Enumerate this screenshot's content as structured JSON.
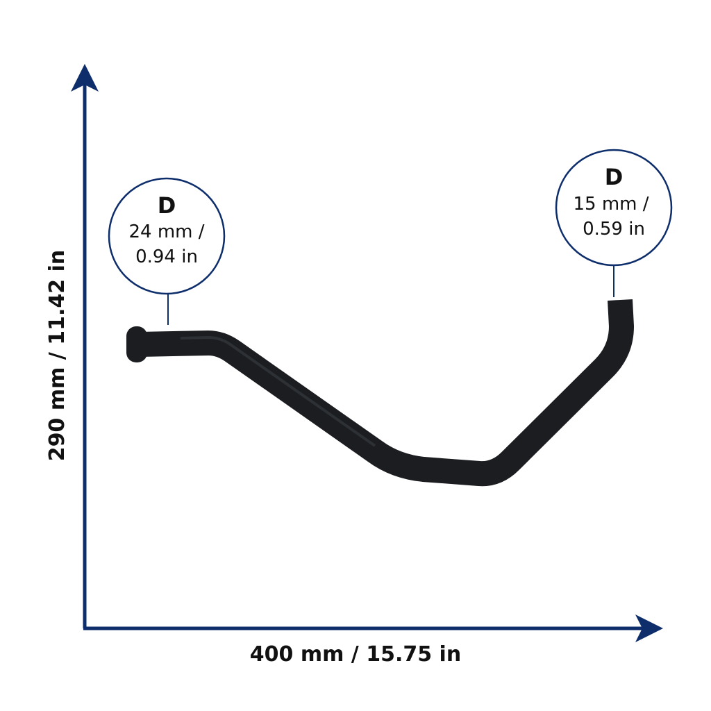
{
  "dimensions": {
    "width": "400 mm / 15.75 in",
    "height": "290 mm / 11.42 in"
  },
  "callouts": [
    {
      "letter": "D",
      "line1": "24 mm /",
      "line2": "0.94 in"
    },
    {
      "letter": "D",
      "line1": "15 mm /",
      "line2": "0.59 in"
    }
  ]
}
